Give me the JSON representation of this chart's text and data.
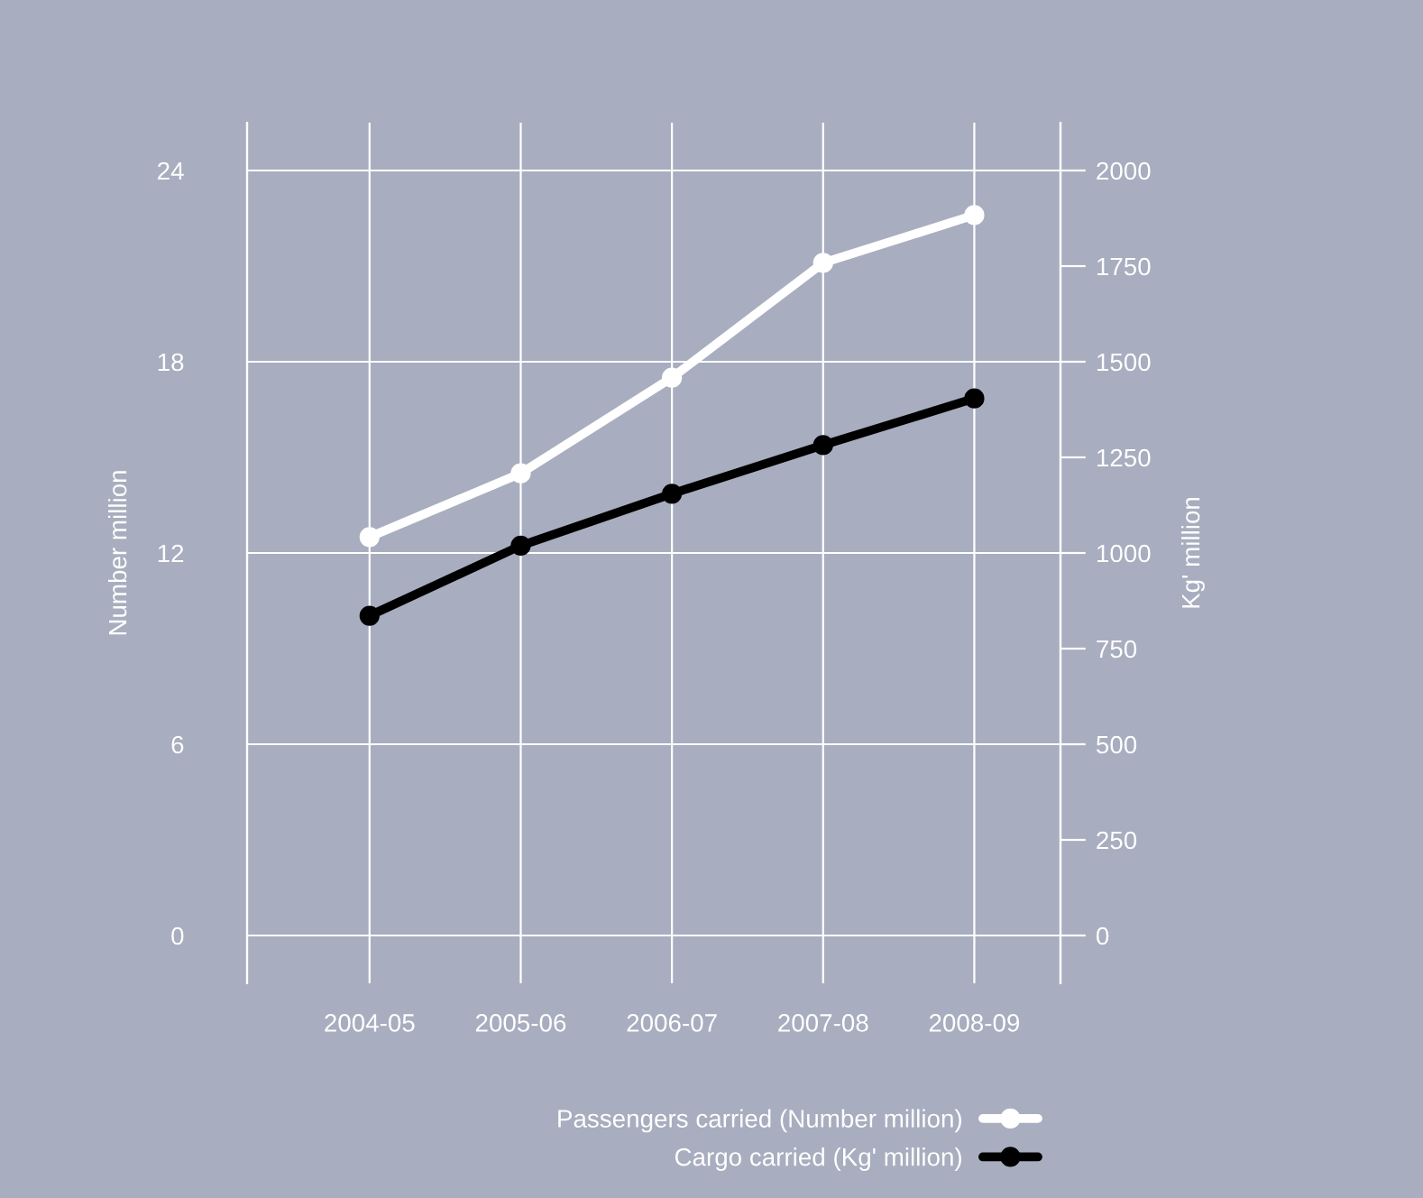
{
  "chart_data": {
    "type": "line",
    "categories": [
      "2004-05",
      "2005-06",
      "2006-07",
      "2007-08",
      "2008-09"
    ],
    "series": [
      {
        "name": "Passengers carried (Number million)",
        "color": "#ffffff",
        "values": [
          12.5,
          14.5,
          17.5,
          21.1,
          22.6
        ]
      },
      {
        "name": "Cargo carried (Kg' million)",
        "color": "#000000",
        "values": [
          836,
          1019,
          1155,
          1282,
          1404
        ],
        "axis": "y2"
      }
    ],
    "ylabel": "Number million",
    "y2label": "Kg' million",
    "ylim": [
      -1.5,
      25.5
    ],
    "yticks": [
      0,
      6,
      12,
      18,
      24
    ],
    "y2lim": [
      -125,
      2125
    ],
    "y2ticks": [
      0,
      250,
      500,
      750,
      1000,
      1250,
      1500,
      1750,
      2000
    ],
    "grid": true,
    "legend": "bottom right",
    "marker": "circle",
    "line_style": "solid"
  }
}
